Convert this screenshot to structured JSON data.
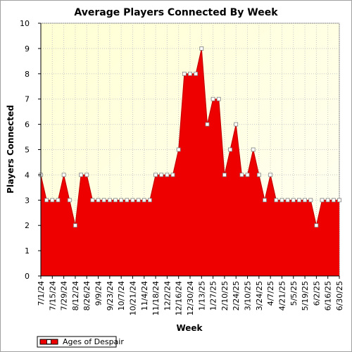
{
  "chart_data": {
    "type": "area",
    "title": "Average Players Connected By Week",
    "xlabel": "Week",
    "ylabel": "Players Connected",
    "ylim": [
      0,
      10
    ],
    "yticks": [
      0,
      1,
      2,
      3,
      4,
      5,
      6,
      7,
      8,
      9,
      10
    ],
    "grid": true,
    "legend_position": "bottom-left",
    "x": [
      "7/1/24",
      "7/8/24",
      "7/15/24",
      "7/22/24",
      "7/29/24",
      "8/5/24",
      "8/12/24",
      "8/19/24",
      "8/26/24",
      "9/2/24",
      "9/9/24",
      "9/16/24",
      "9/23/24",
      "9/30/24",
      "10/7/24",
      "10/14/24",
      "10/21/24",
      "10/28/24",
      "11/4/24",
      "11/11/24",
      "11/18/24",
      "11/25/24",
      "12/2/24",
      "12/9/24",
      "12/16/24",
      "12/23/24",
      "12/30/24",
      "1/6/25",
      "1/13/25",
      "1/20/25",
      "1/27/25",
      "2/3/25",
      "2/10/25",
      "2/17/25",
      "2/24/25",
      "3/3/25",
      "3/10/25",
      "3/17/25",
      "3/24/25",
      "3/31/25",
      "4/7/25",
      "4/14/25",
      "4/21/25",
      "4/28/25",
      "5/5/25",
      "5/12/25",
      "5/19/25",
      "5/26/25",
      "6/2/25",
      "6/9/25",
      "6/16/25",
      "6/23/25",
      "6/30/25"
    ],
    "xtick_labels": [
      "7/1/24",
      "7/15/24",
      "7/29/24",
      "8/12/24",
      "8/26/24",
      "9/9/24",
      "9/23/24",
      "10/7/24",
      "10/21/24",
      "11/4/24",
      "11/18/24",
      "12/2/24",
      "12/16/24",
      "12/30/24",
      "1/13/25",
      "1/27/25",
      "2/10/25",
      "2/24/25",
      "3/10/25",
      "3/24/25",
      "4/7/25",
      "4/21/25",
      "5/5/25",
      "5/19/25",
      "6/2/25",
      "6/16/25",
      "6/30/25"
    ],
    "series": [
      {
        "name": "Ages of Despair",
        "color": "#ee0000",
        "values": [
          4,
          3,
          3,
          3,
          4,
          3,
          2,
          4,
          4,
          3,
          3,
          3,
          3,
          3,
          3,
          3,
          3,
          3,
          3,
          3,
          4,
          4,
          4,
          4,
          5,
          8,
          8,
          8,
          9,
          6,
          7,
          7,
          4,
          5,
          6,
          4,
          4,
          5,
          4,
          3,
          4,
          3,
          3,
          3,
          3,
          3,
          3,
          3,
          2,
          3,
          3,
          3,
          3
        ]
      }
    ],
    "colors": {
      "plot_background": "#ffffe0",
      "area": "#ee0000",
      "grid": "#c8c8c8"
    }
  }
}
